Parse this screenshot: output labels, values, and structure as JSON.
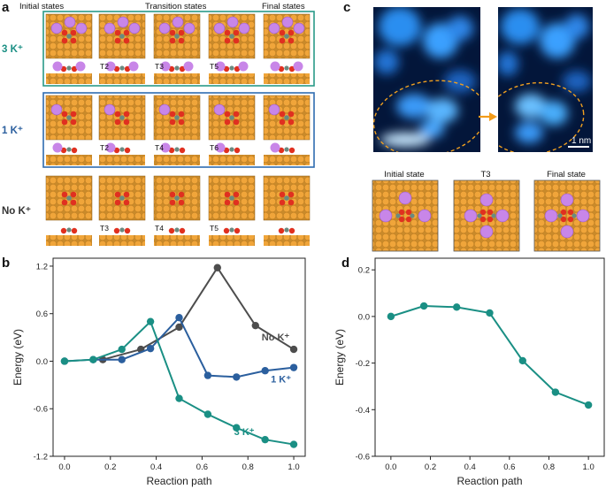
{
  "panel_a": {
    "letter": "a",
    "header": {
      "initial": "Initial states",
      "transition": "Transition states",
      "final": "Final states"
    },
    "rows": [
      {
        "label": "3 K⁺",
        "color": "#1a8f84",
        "border": "#2a9a88",
        "ts": [
          "T2",
          "T3",
          "T5"
        ],
        "k_count": 3
      },
      {
        "label": "1 K⁺",
        "color": "#2b5f9e",
        "border": "#2f6cb0",
        "ts": [
          "T2",
          "T4",
          "T6"
        ],
        "k_count": 1
      },
      {
        "label": "No K⁺",
        "color": "#333333",
        "border": "#555555",
        "ts": [
          "T3",
          "T4",
          "T5"
        ],
        "k_count": 0
      }
    ]
  },
  "panel_c": {
    "letter": "c",
    "scale_bar": "1 nm",
    "frames": [
      "Initial state",
      "T3",
      "Final state"
    ]
  },
  "chart_data": [
    {
      "panel": "b",
      "type": "line",
      "xlabel": "Reaction path",
      "ylabel": "Energy (eV)",
      "xlim": [
        -0.05,
        1.05
      ],
      "ylim": [
        -1.2,
        1.3
      ],
      "xticks": [
        "0.0",
        "0.2",
        "0.4",
        "0.6",
        "0.8",
        "1.0"
      ],
      "yticks": [
        "-1.2",
        "-0.6",
        "0.0",
        "0.6",
        "1.2"
      ],
      "series": [
        {
          "name": "No K⁺",
          "color": "#4d4d4d",
          "x": [
            0.167,
            0.333,
            0.5,
            0.667,
            0.833,
            1.0
          ],
          "y": [
            0.02,
            0.15,
            0.43,
            1.18,
            0.45,
            0.15
          ]
        },
        {
          "name": "1 K⁺",
          "color": "#2b5f9e",
          "x": [
            0.0,
            0.125,
            0.25,
            0.375,
            0.5,
            0.625,
            0.75,
            0.875,
            1.0
          ],
          "y": [
            0.0,
            0.02,
            0.02,
            0.16,
            0.55,
            -0.18,
            -0.2,
            -0.12,
            -0.08
          ]
        },
        {
          "name": "3 K⁺",
          "color": "#1a8f84",
          "x": [
            0.0,
            0.125,
            0.25,
            0.375,
            0.5,
            0.625,
            0.75,
            0.875,
            1.0
          ],
          "y": [
            0.0,
            0.02,
            0.15,
            0.5,
            -0.47,
            -0.67,
            -0.84,
            -0.99,
            -1.05
          ]
        }
      ]
    },
    {
      "panel": "d",
      "type": "line",
      "xlabel": "Reaction path",
      "ylabel": "Energy (eV)",
      "xlim": [
        -0.08,
        1.08
      ],
      "ylim": [
        -0.6,
        0.25
      ],
      "xticks": [
        "0.0",
        "0.2",
        "0.4",
        "0.6",
        "0.8",
        "1.0"
      ],
      "yticks": [
        "0.2",
        "0.0",
        "-0.2",
        "-0.4",
        "-0.6"
      ],
      "series": [
        {
          "color": "#1a8f84",
          "x": [
            0.0,
            0.167,
            0.333,
            0.5,
            0.667,
            0.833,
            1.0
          ],
          "y": [
            0.0,
            0.045,
            0.04,
            0.015,
            -0.19,
            -0.325,
            -0.38
          ]
        }
      ]
    }
  ]
}
